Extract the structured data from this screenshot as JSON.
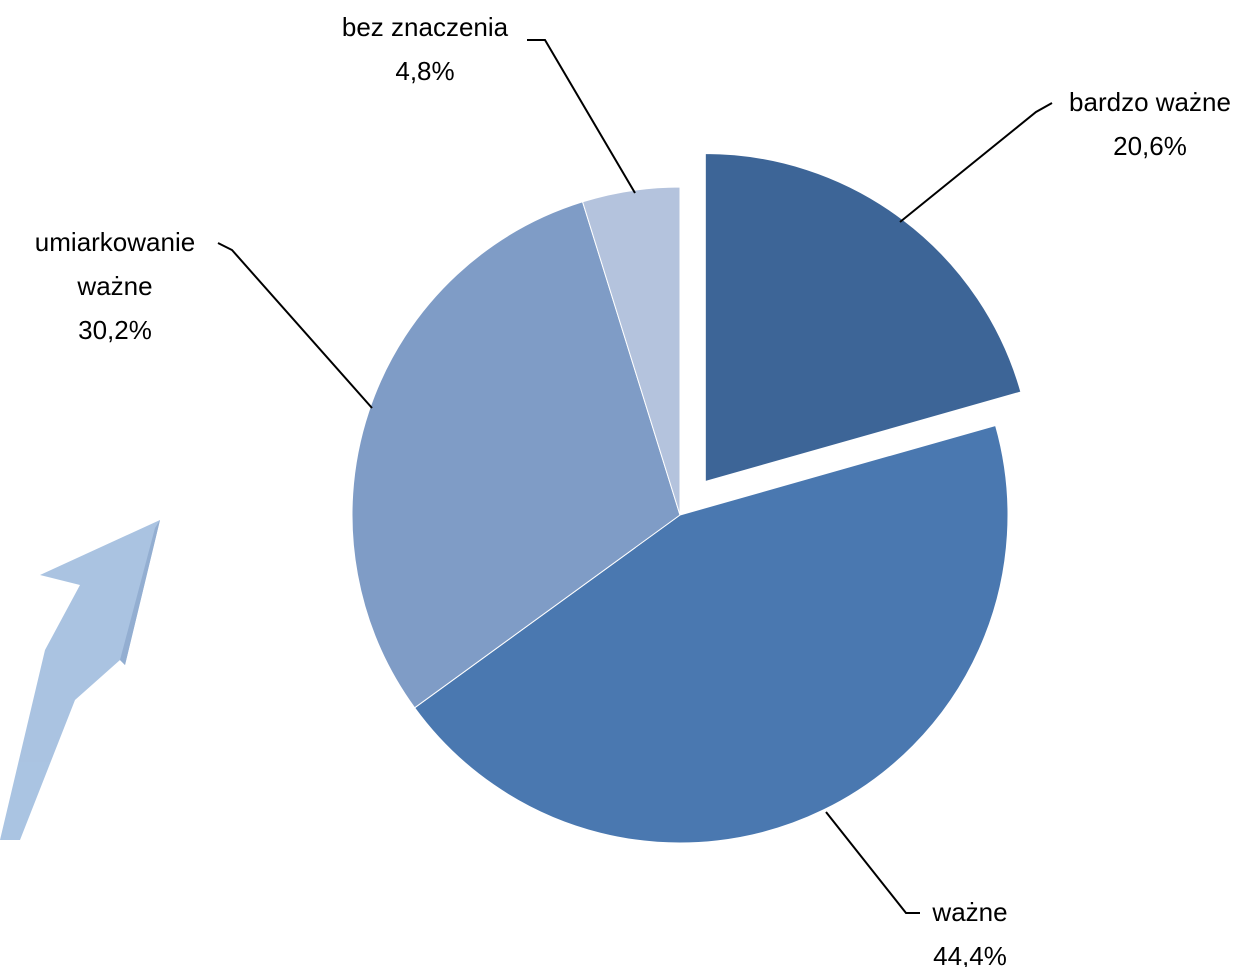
{
  "chart_data": {
    "type": "pie",
    "categories": [
      "bardzo ważne",
      "ważne",
      "umiarkowanie ważne",
      "bez znaczenia"
    ],
    "values": [
      20.6,
      44.4,
      30.2,
      4.8
    ],
    "value_labels": [
      "20,6%",
      "44,4%",
      "30,2%",
      "4,8%"
    ],
    "colors": [
      "#3d6597",
      "#4a78b0",
      "#7f9cc6",
      "#b4c3dd"
    ],
    "exploded": [
      true,
      false,
      false,
      false
    ]
  }
}
